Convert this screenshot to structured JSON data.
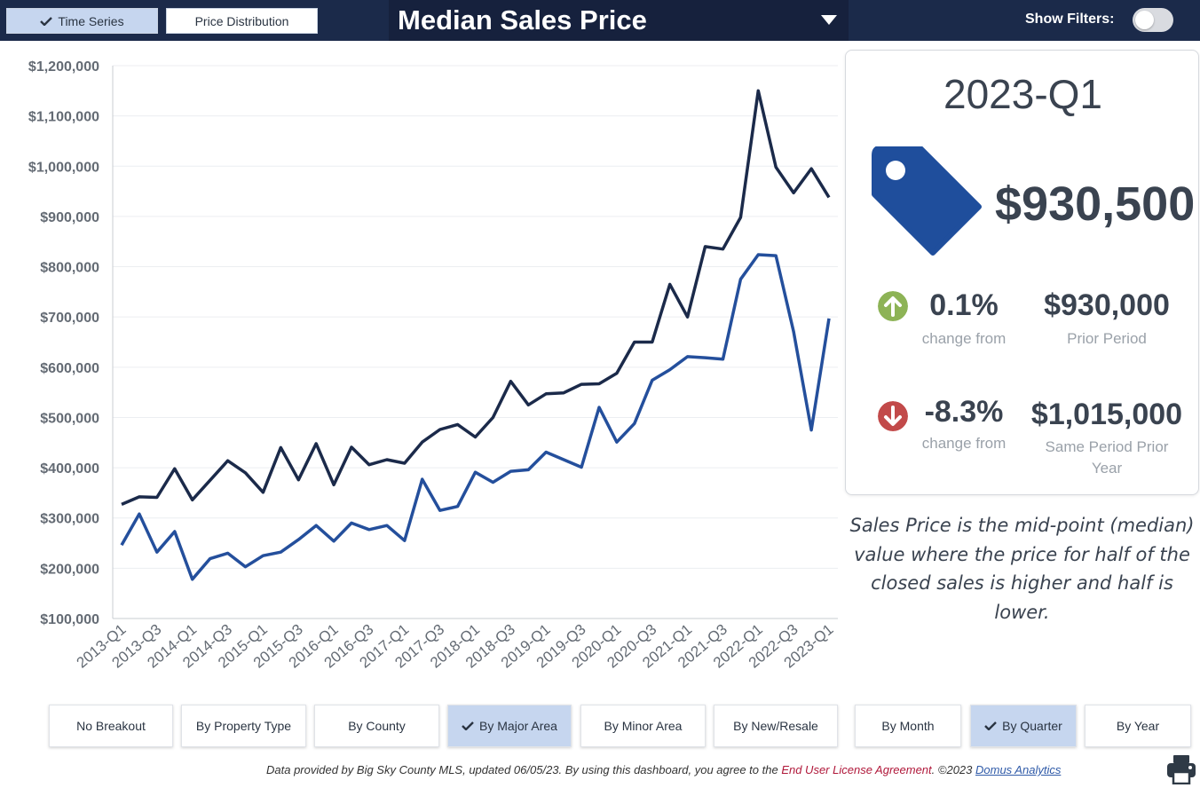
{
  "toolbar": {
    "time_series": "Time Series",
    "price_distribution": "Price Distribution",
    "title": "Median Sales Price",
    "show_filters": "Show Filters:",
    "filters_on": false
  },
  "summary": {
    "period": "2023-Q1",
    "value": "$930,500",
    "change1_pct": "0.1%",
    "change1_label": "change from",
    "prior_value": "$930,000",
    "prior_label": "Prior Period",
    "change2_pct": "-8.3%",
    "change2_label": "change from",
    "prior_year_value": "$1,015,000",
    "prior_year_label_line1": "Same Period Prior",
    "prior_year_label_line2": "Year"
  },
  "description": {
    "line1": "Sales Price is the mid-point (median)",
    "line2": "value where the price for half of the",
    "line3": "closed sales is higher and half is lower."
  },
  "breakout_buttons": [
    {
      "label": "No Breakout",
      "active": false
    },
    {
      "label": "By Property Type",
      "active": false
    },
    {
      "label": "By County",
      "active": false
    },
    {
      "label": "By Major Area",
      "active": true
    },
    {
      "label": "By Minor Area",
      "active": false
    },
    {
      "label": "By New/Resale",
      "active": false
    }
  ],
  "period_buttons": [
    {
      "label": "By Month",
      "active": false
    },
    {
      "label": "By Quarter",
      "active": true
    },
    {
      "label": "By Year",
      "active": false
    }
  ],
  "footer": {
    "text1": "Data provided by Big Sky County MLS, updated 06/05/23.  By using this dashboard, you agree to the ",
    "license": "End User License Agreement",
    "text2": ".  ©2023 ",
    "brand": "Domus Analytics"
  },
  "colors": {
    "topbar": "#1b2a4a",
    "series_dark": "#1b2a4a",
    "series_blue": "#244f9c",
    "tag": "#1f4e9c",
    "up": "#8db356",
    "down": "#c24a4a",
    "active_button": "#c6d6ef"
  },
  "icons": {
    "check": "check-icon",
    "dropdown": "chevron-down-icon",
    "tag": "price-tag-icon",
    "up": "arrow-up-circle-icon",
    "down": "arrow-down-circle-icon",
    "print": "printer-icon"
  },
  "chart_data": {
    "type": "line",
    "ylim": [
      100000,
      1200000
    ],
    "yticks": [
      100000,
      200000,
      300000,
      400000,
      500000,
      600000,
      700000,
      800000,
      900000,
      1000000,
      1100000,
      1200000
    ],
    "ytick_labels": [
      "$100,000",
      "$200,000",
      "$300,000",
      "$400,000",
      "$500,000",
      "$600,000",
      "$700,000",
      "$800,000",
      "$900,000",
      "$1,000,000",
      "$1,100,000",
      "$1,200,000"
    ],
    "x": [
      "2013-Q1",
      "2013-Q2",
      "2013-Q3",
      "2013-Q4",
      "2014-Q1",
      "2014-Q2",
      "2014-Q3",
      "2014-Q4",
      "2015-Q1",
      "2015-Q2",
      "2015-Q3",
      "2015-Q4",
      "2016-Q1",
      "2016-Q2",
      "2016-Q3",
      "2016-Q4",
      "2017-Q1",
      "2017-Q2",
      "2017-Q3",
      "2017-Q4",
      "2018-Q1",
      "2018-Q2",
      "2018-Q3",
      "2018-Q4",
      "2019-Q1",
      "2019-Q2",
      "2019-Q3",
      "2019-Q4",
      "2020-Q1",
      "2020-Q2",
      "2020-Q3",
      "2020-Q4",
      "2021-Q1",
      "2021-Q2",
      "2021-Q3",
      "2021-Q4",
      "2022-Q1",
      "2022-Q2",
      "2022-Q3",
      "2022-Q4",
      "2023-Q1"
    ],
    "xtick_labels": [
      "2013-Q1",
      "2013-Q3",
      "2014-Q1",
      "2014-Q3",
      "2015-Q1",
      "2015-Q3",
      "2016-Q1",
      "2016-Q3",
      "2017-Q1",
      "2017-Q3",
      "2018-Q1",
      "2018-Q3",
      "2019-Q1",
      "2019-Q3",
      "2020-Q1",
      "2020-Q3",
      "2021-Q1",
      "2021-Q3",
      "2022-Q1",
      "2022-Q3",
      "2023-Q1"
    ],
    "series": [
      {
        "values": [
          327000,
          342000,
          341000,
          398000,
          336000,
          375000,
          414000,
          390000,
          351000,
          440000,
          376000,
          448000,
          366000,
          441000,
          406000,
          416000,
          409000,
          451000,
          476000,
          486000,
          461000,
          500000,
          572000,
          525000,
          547000,
          549000,
          566000,
          567000,
          588000,
          650000,
          650000,
          765000,
          700000,
          840000,
          835000,
          898000,
          1150000,
          998000,
          947000,
          995000,
          938000
        ],
        "color": "#1b2a4a"
      },
      {
        "values": [
          246000,
          308000,
          232000,
          273000,
          178000,
          219000,
          230000,
          203000,
          225000,
          232000,
          257000,
          285000,
          254000,
          290000,
          277000,
          285000,
          255000,
          377000,
          315000,
          323000,
          391000,
          371000,
          393000,
          396000,
          431000,
          416000,
          401000,
          520000,
          451000,
          488000,
          574000,
          595000,
          621000,
          619000,
          616000,
          775000,
          824000,
          822000,
          671000,
          475000,
          697000
        ],
        "color": "#244f9c"
      }
    ]
  }
}
